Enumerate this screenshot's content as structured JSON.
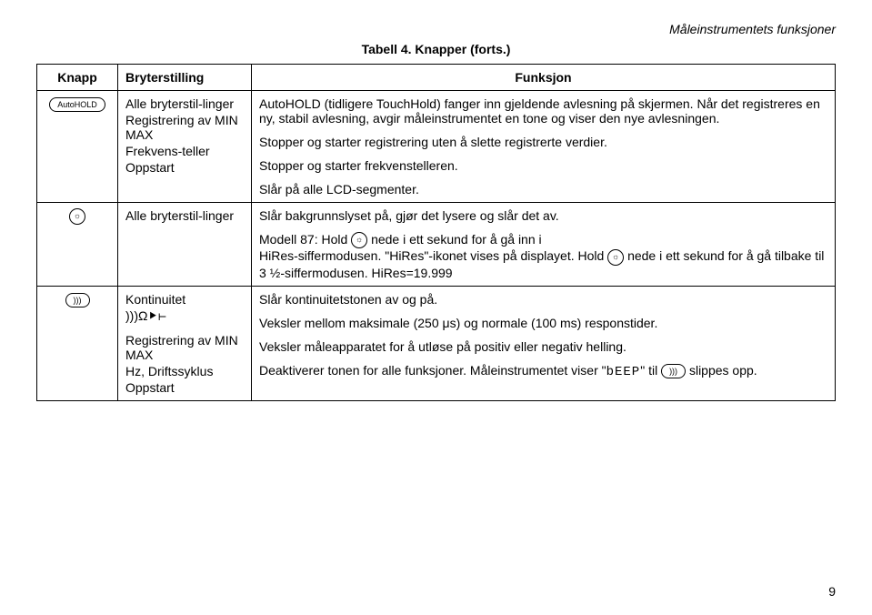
{
  "page": {
    "header_right": "Måleinstrumentets funksjoner",
    "table_title": "Tabell 4. Knapper (forts.)",
    "footer": "9"
  },
  "columns": {
    "c1": "Knapp",
    "c2": "Bryterstilling",
    "c3": "Funksjon"
  },
  "buttons": {
    "autohold": "AutoHOLD",
    "beeper_glyph": ")))"
  },
  "row1": {
    "sr1_label": "Alle bryterstil-linger",
    "sr1_text": "AutoHOLD (tidligere TouchHold) fanger inn gjeldende avlesning på skjermen. Når det registreres en ny, stabil avlesning, avgir måleinstrumentet en tone og viser den nye avlesningen.",
    "sr2_label": "Registrering av MIN MAX",
    "sr2_text": "Stopper og starter registrering uten å slette registrerte verdier.",
    "sr3_label": "Frekvens-teller",
    "sr3_text": "Stopper og starter frekvenstelleren.",
    "sr4_label": "Oppstart",
    "sr4_text": "Slår på alle LCD-segmenter."
  },
  "row2": {
    "sr1_label": "Alle bryterstil-linger",
    "sr1_line1": "Slår bakgrunnslyset på, gjør det lysere og slår det av.",
    "sr1_line2a": "Modell 87: Hold ",
    "sr1_line2b": " nede i ett sekund for å gå inn i",
    "sr1_line3a": "HiRes-siffermodusen. \"HiRes\"-ikonet vises på displayet. Hold ",
    "sr1_line3b": " nede i ett sekund for å gå tilbake til 3 ½-siffermodusen. HiRes=19.999"
  },
  "row3": {
    "sr1_label": "Kontinuitet",
    "sr1_sub": ")))Ω⯈⊢",
    "sr1_text": "Slår kontinuitetstonen av og på.",
    "sr2_label": "Registrering av MIN MAX",
    "sr2_text": "Veksler mellom maksimale (250 μs) og normale (100 ms) responstider.",
    "sr3_label": "Hz, Driftssyklus",
    "sr3_text": "Veksler måleapparatet for å utløse på positiv eller negativ helling.",
    "sr4_label": "Oppstart",
    "sr4_text_a": "Deaktiverer tonen for alle funksjoner. Måleinstrumentet viser \"",
    "sr4_lcd": "bEEP",
    "sr4_text_b": "\" til ",
    "sr4_text_c": " slippes opp."
  }
}
